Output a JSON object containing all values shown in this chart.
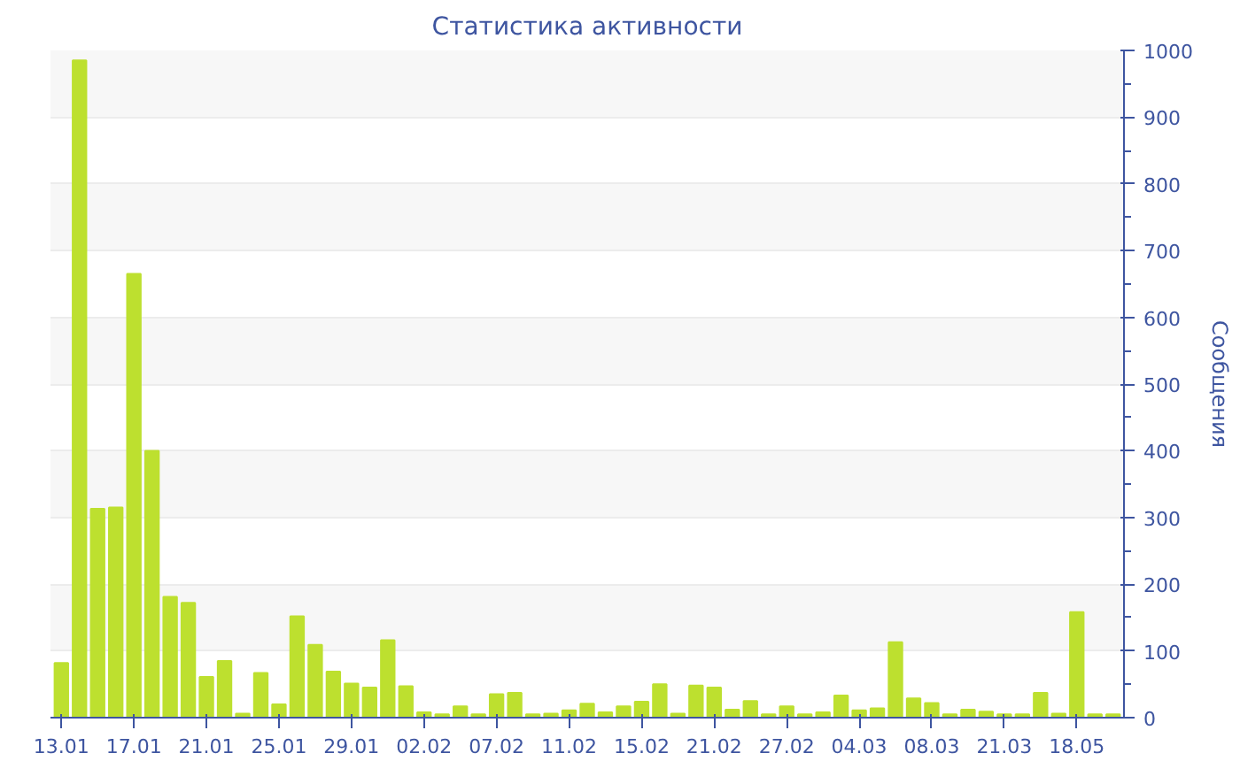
{
  "chart_data": {
    "type": "bar",
    "title": "Статистика активности",
    "ylabel": "Сообщения",
    "categories": [
      "13.01",
      null,
      null,
      null,
      "17.01",
      null,
      null,
      null,
      "21.01",
      null,
      null,
      null,
      "25.01",
      null,
      null,
      null,
      "29.01",
      null,
      null,
      null,
      "02.02",
      null,
      null,
      null,
      "07.02",
      null,
      null,
      null,
      "11.02",
      null,
      null,
      null,
      "15.02",
      null,
      null,
      null,
      "21.02",
      null,
      null,
      null,
      "27.02",
      null,
      null,
      null,
      "04.03",
      null,
      null,
      null,
      "08.03",
      null,
      null,
      null,
      "21.03",
      null,
      null,
      null,
      "18.05",
      null,
      null
    ],
    "values": [
      82,
      985,
      313,
      315,
      665,
      400,
      181,
      172,
      61,
      85,
      6,
      67,
      20,
      152,
      109,
      69,
      51,
      45,
      116,
      47,
      8,
      5,
      17,
      5,
      35,
      37,
      5,
      6,
      11,
      21,
      8,
      17,
      24,
      50,
      6,
      48,
      45,
      12,
      25,
      5,
      17,
      5,
      8,
      33,
      11,
      14,
      113,
      29,
      22,
      5,
      12,
      9,
      5,
      5,
      37,
      6,
      158,
      5,
      5
    ],
    "color": "#bde02f",
    "ylim": [
      0,
      1000
    ],
    "yticks": [
      0,
      100,
      200,
      300,
      400,
      500,
      600,
      700,
      800,
      900,
      1000
    ],
    "grid": "y"
  }
}
